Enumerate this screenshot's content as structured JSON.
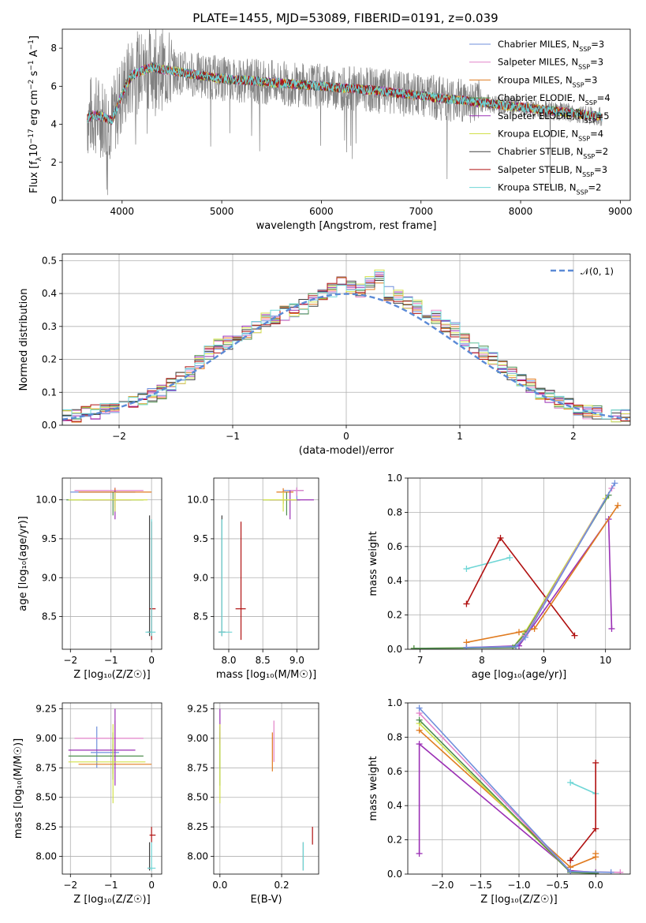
{
  "chart_data": [
    {
      "type": "line",
      "title": "PLATE=1455, MJD=53089, FIBERID=0191, z=0.039",
      "xlabel": "wavelength [Angstrom, rest frame]",
      "ylabel_parts": [
        "Flux [f",
        "λ",
        "10",
        "−17",
        " erg cm",
        "−2",
        " s",
        "−1",
        " A",
        "−1",
        "]"
      ],
      "xlim": [
        3400,
        9100
      ],
      "ylim": [
        0,
        9
      ],
      "xticks": [
        4000,
        5000,
        6000,
        7000,
        8000,
        9000
      ],
      "yticks": [
        0,
        2,
        4,
        6,
        8
      ],
      "data_range": [
        3650,
        8820
      ],
      "grid": false,
      "legend_position": "top-right",
      "series": [
        {
          "name": "Chabrier MILES",
          "nssp": "3",
          "color": "#6f8fdb"
        },
        {
          "name": "Salpeter MILES",
          "nssp": "3",
          "color": "#e282c8"
        },
        {
          "name": "Kroupa MILES",
          "nssp": "3",
          "color": "#e07b20"
        },
        {
          "name": "Chabrier ELODIE",
          "nssp": "4",
          "color": "#4f8f4f"
        },
        {
          "name": "Salpeter ELODIE",
          "nssp": "5",
          "color": "#9b30b5"
        },
        {
          "name": "Kroupa ELODIE",
          "nssp": "4",
          "color": "#d2e04a"
        },
        {
          "name": "Chabrier STELIB",
          "nssp": "2",
          "color": "#404040"
        },
        {
          "name": "Salpeter STELIB",
          "nssp": "3",
          "color": "#b01010"
        },
        {
          "name": "Kroupa STELIB",
          "nssp": "2",
          "color": "#6fd6d6"
        }
      ],
      "continuum": {
        "x": [
          3650,
          3700,
          3800,
          3900,
          4000,
          4100,
          4300,
          4500,
          5000,
          5500,
          6000,
          6500,
          7000,
          7500,
          8000,
          8500,
          8820
        ],
        "y": [
          4.3,
          4.5,
          4.4,
          4.2,
          5.6,
          6.6,
          7.0,
          6.8,
          6.4,
          6.2,
          6.0,
          5.8,
          5.5,
          5.2,
          4.9,
          4.6,
          4.4
        ]
      }
    },
    {
      "type": "histogram",
      "xlabel": "(data-model)/error",
      "ylabel": "Normed distribution",
      "xlim": [
        -2.5,
        2.5
      ],
      "ylim": [
        0,
        0.52
      ],
      "xticks": [
        -2,
        -1,
        0,
        1,
        2
      ],
      "yticks": [
        0.0,
        0.1,
        0.2,
        0.3,
        0.4,
        0.5
      ],
      "grid": true,
      "legend": "𝒩(0, 1)",
      "legend_position": "top-right",
      "bin_width": 0.1,
      "base": [
        0.03,
        0.03,
        0.04,
        0.04,
        0.05,
        0.06,
        0.06,
        0.07,
        0.08,
        0.09,
        0.1,
        0.12,
        0.14,
        0.16,
        0.19,
        0.22,
        0.24,
        0.25,
        0.26,
        0.28,
        0.3,
        0.32,
        0.33,
        0.34,
        0.35,
        0.36,
        0.38,
        0.39,
        0.41,
        0.43,
        0.42,
        0.41,
        0.43,
        0.45,
        0.4,
        0.39,
        0.37,
        0.36,
        0.34,
        0.33,
        0.3,
        0.29,
        0.26,
        0.24,
        0.22,
        0.2,
        0.18,
        0.16,
        0.14,
        0.12,
        0.1,
        0.09,
        0.07,
        0.06,
        0.05,
        0.04,
        0.04,
        0.03,
        0.03,
        0.03
      ]
    },
    {
      "type": "scatter",
      "xlabel": "Z [log₁₀(Z/Z☉)]",
      "ylabel": "age  [log₁₀(age/yr)]",
      "xlim": [
        -2.2,
        0.25
      ],
      "ylim": [
        8.08,
        10.28
      ],
      "xticks": [
        -2,
        -1,
        0
      ],
      "yticks": [
        8.5,
        9.0,
        9.5,
        10.0
      ],
      "grid": true
    },
    {
      "type": "scatter",
      "xlabel": "mass [log₁₀(M/M☉)]",
      "xlim": [
        7.78,
        9.32
      ],
      "ylim": [
        8.08,
        10.28
      ],
      "xticks": [
        8.0,
        8.5,
        9.0
      ],
      "yticks": [
        8.5,
        9.0,
        9.5,
        10.0
      ],
      "grid": true
    },
    {
      "type": "line",
      "xlabel": "age  [log₁₀(age/yr)]",
      "ylabel": "mass weight",
      "xlim": [
        6.8,
        10.4
      ],
      "ylim": [
        0,
        1
      ],
      "xticks": [
        7,
        8,
        9,
        10
      ],
      "yticks": [
        0.0,
        0.2,
        0.4,
        0.6,
        0.8,
        1.0
      ],
      "grid": true,
      "series": [
        {
          "color": "#6fd6d6",
          "x": [
            7.75,
            8.45
          ],
          "y": [
            0.47,
            0.535
          ]
        },
        {
          "color": "#b01010",
          "x": [
            7.75,
            8.3,
            9.5
          ],
          "y": [
            0.265,
            0.65,
            0.08
          ]
        },
        {
          "color": "#9b30b5",
          "x": [
            7.75,
            8.6,
            10.05,
            10.1
          ],
          "y": [
            0.01,
            0.02,
            0.76,
            0.12
          ]
        },
        {
          "color": "#e07b20",
          "x": [
            7.75,
            8.6,
            8.85,
            10.2
          ],
          "y": [
            0.04,
            0.1,
            0.12,
            0.84
          ]
        },
        {
          "color": "#d2e04a",
          "x": [
            6.9,
            8.5,
            8.7,
            10.0
          ],
          "y": [
            0.005,
            0.01,
            0.1,
            0.88
          ]
        },
        {
          "color": "#4f8f4f",
          "x": [
            6.9,
            8.5,
            8.7,
            10.05
          ],
          "y": [
            0.005,
            0.01,
            0.09,
            0.9
          ]
        },
        {
          "color": "#e282c8",
          "x": [
            7.75,
            8.55,
            8.7,
            10.1
          ],
          "y": [
            0.01,
            0.015,
            0.08,
            0.94
          ]
        },
        {
          "color": "#6f8fdb",
          "x": [
            7.75,
            8.55,
            8.7,
            10.15
          ],
          "y": [
            0.01,
            0.015,
            0.07,
            0.97
          ]
        }
      ]
    },
    {
      "type": "scatter",
      "xlabel": "Z [log₁₀(Z/Z☉)]",
      "ylabel": "mass [log₁₀(M/M☉)]",
      "xlim": [
        -2.2,
        0.25
      ],
      "ylim": [
        7.85,
        9.3
      ],
      "xticks": [
        -2,
        -1,
        0
      ],
      "yticks": [
        8.0,
        8.25,
        8.5,
        8.75,
        9.0,
        9.25
      ],
      "grid": true
    },
    {
      "type": "scatter",
      "xlabel": "E(B-V)",
      "xlim": [
        -0.02,
        0.32
      ],
      "ylim": [
        7.85,
        9.3
      ],
      "xticks": [
        0.0,
        0.2
      ],
      "yticks": [
        8.0,
        8.25,
        8.5,
        8.75,
        9.0,
        9.25
      ],
      "grid": true
    },
    {
      "type": "line",
      "xlabel": "Z [log₁₀(Z/Z☉)]",
      "ylabel": "mass weight",
      "xlim": [
        -2.45,
        0.45
      ],
      "ylim": [
        0,
        1
      ],
      "xticks": [
        -2.0,
        -1.5,
        -1.0,
        -0.5,
        0.0
      ],
      "yticks": [
        0.0,
        0.2,
        0.4,
        0.6,
        0.8,
        1.0
      ],
      "grid": true,
      "series": [
        {
          "color": "#6fd6d6",
          "x": [
            -0.33,
            0.0
          ],
          "y": [
            0.535,
            0.47
          ]
        },
        {
          "color": "#b01010",
          "x": [
            -0.33,
            0.0,
            0.0
          ],
          "y": [
            0.08,
            0.265,
            0.65
          ]
        },
        {
          "color": "#9b30b5",
          "x": [
            -2.3,
            -2.3,
            -0.33,
            0.0
          ],
          "y": [
            0.12,
            0.76,
            0.02,
            0.01
          ]
        },
        {
          "color": "#e07b20",
          "x": [
            -2.3,
            -0.33,
            0.0,
            0.0
          ],
          "y": [
            0.84,
            0.04,
            0.1,
            0.12
          ]
        },
        {
          "color": "#d2e04a",
          "x": [
            -2.3,
            -0.33,
            0.0
          ],
          "y": [
            0.88,
            0.01,
            0.005
          ]
        },
        {
          "color": "#4f8f4f",
          "x": [
            -2.3,
            -0.33,
            0.0
          ],
          "y": [
            0.9,
            0.01,
            0.005
          ]
        },
        {
          "color": "#e282c8",
          "x": [
            -2.3,
            -0.33,
            0.32
          ],
          "y": [
            0.94,
            0.015,
            0.01
          ]
        },
        {
          "color": "#6f8fdb",
          "x": [
            -2.3,
            -0.33,
            0.2
          ],
          "y": [
            0.97,
            0.015,
            0.01
          ]
        }
      ]
    }
  ],
  "errorbars": {
    "age_vs_Z": [
      {
        "color": "#6f8fdb",
        "x": -0.9,
        "y": 10.1,
        "xlo": -2.0,
        "xhi": -0.4,
        "ylo": 10.0,
        "yhi": 10.15
      },
      {
        "color": "#e282c8",
        "x": -0.9,
        "y": 10.12,
        "xlo": -1.9,
        "xhi": -0.2,
        "ylo": 10.05,
        "yhi": 10.16
      },
      {
        "color": "#e07b20",
        "x": -0.9,
        "y": 10.1,
        "xlo": -1.8,
        "xhi": 0.0,
        "ylo": 9.9,
        "yhi": 10.15
      },
      {
        "color": "#4f8f4f",
        "x": -0.95,
        "y": 10.0,
        "xlo": -2.1,
        "xhi": -0.2,
        "ylo": 9.8,
        "yhi": 10.1
      },
      {
        "color": "#9b30b5",
        "x": -0.9,
        "y": 10.0,
        "xlo": -1.7,
        "xhi": -0.5,
        "ylo": 9.75,
        "yhi": 10.12
      },
      {
        "color": "#d2e04a",
        "x": -0.9,
        "y": 10.0,
        "xlo": -2.05,
        "xhi": -0.1,
        "ylo": 9.85,
        "yhi": 10.1
      },
      {
        "color": "#404040",
        "x": -0.05,
        "y": 8.3,
        "xlo": -0.1,
        "xhi": 0.0,
        "ylo": 8.25,
        "yhi": 9.8
      },
      {
        "color": "#b01010",
        "x": 0.0,
        "y": 8.6,
        "xlo": -0.05,
        "xhi": 0.1,
        "ylo": 8.2,
        "yhi": 9.72
      },
      {
        "color": "#6fd6d6",
        "x": 0.0,
        "y": 8.3,
        "xlo": -0.15,
        "xhi": 0.1,
        "ylo": 8.25,
        "yhi": 9.75
      }
    ],
    "age_vs_mass": [
      {
        "color": "#6f8fdb",
        "x": 9.0,
        "y": 10.12,
        "xlo": 8.8,
        "xhi": 9.1,
        "ylo": 10.0,
        "yhi": 10.16
      },
      {
        "color": "#e282c8",
        "x": 9.0,
        "y": 10.12,
        "xlo": 8.9,
        "xhi": 9.1,
        "ylo": 10.05,
        "yhi": 10.16
      },
      {
        "color": "#e07b20",
        "x": 8.8,
        "y": 10.1,
        "xlo": 8.7,
        "xhi": 8.95,
        "ylo": 9.95,
        "yhi": 10.15
      },
      {
        "color": "#4f8f4f",
        "x": 8.85,
        "y": 10.0,
        "xlo": 8.5,
        "xhi": 9.05,
        "ylo": 9.8,
        "yhi": 10.1
      },
      {
        "color": "#9b30b5",
        "x": 8.9,
        "y": 10.0,
        "xlo": 8.6,
        "xhi": 9.25,
        "ylo": 9.75,
        "yhi": 10.12
      },
      {
        "color": "#d2e04a",
        "x": 8.8,
        "y": 10.0,
        "xlo": 8.5,
        "xhi": 9.0,
        "ylo": 9.85,
        "yhi": 10.1
      },
      {
        "color": "#404040",
        "x": 7.9,
        "y": 8.3,
        "xlo": 7.85,
        "xhi": 7.95,
        "ylo": 8.25,
        "yhi": 9.8
      },
      {
        "color": "#b01010",
        "x": 8.18,
        "y": 8.6,
        "xlo": 8.1,
        "xhi": 8.25,
        "ylo": 8.2,
        "yhi": 9.72
      },
      {
        "color": "#6fd6d6",
        "x": 7.9,
        "y": 8.3,
        "xlo": 7.85,
        "xhi": 8.05,
        "ylo": 8.25,
        "yhi": 9.75
      }
    ],
    "mass_vs_Z": [
      {
        "color": "#6f8fdb",
        "x": -1.35,
        "y": 8.88,
        "xlo": -1.5,
        "xhi": -0.8,
        "ylo": 8.75,
        "yhi": 9.1
      },
      {
        "color": "#e282c8",
        "x": -0.9,
        "y": 9.0,
        "xlo": -1.9,
        "xhi": -0.2,
        "ylo": 8.8,
        "yhi": 9.15
      },
      {
        "color": "#e07b20",
        "x": -0.95,
        "y": 8.78,
        "xlo": -1.8,
        "xhi": 0.0,
        "ylo": 8.7,
        "yhi": 8.95
      },
      {
        "color": "#4f8f4f",
        "x": -0.95,
        "y": 8.85,
        "xlo": -2.05,
        "xhi": -0.2,
        "ylo": 8.65,
        "yhi": 9.05
      },
      {
        "color": "#9b30b5",
        "x": -0.9,
        "y": 8.9,
        "xlo": -2.05,
        "xhi": -0.4,
        "ylo": 8.6,
        "yhi": 9.25
      },
      {
        "color": "#d2e04a",
        "x": -0.95,
        "y": 8.8,
        "xlo": -2.05,
        "xhi": -0.15,
        "ylo": 8.45,
        "yhi": 9.12
      },
      {
        "color": "#404040",
        "x": -0.05,
        "y": 7.9,
        "xlo": -0.1,
        "xhi": 0.0,
        "ylo": 7.88,
        "yhi": 8.12
      },
      {
        "color": "#b01010",
        "x": 0.0,
        "y": 8.18,
        "xlo": -0.05,
        "xhi": 0.1,
        "ylo": 8.12,
        "yhi": 8.25
      },
      {
        "color": "#6fd6d6",
        "x": 0.0,
        "y": 7.9,
        "xlo": -0.1,
        "xhi": 0.1,
        "ylo": 7.88,
        "yhi": 8.12
      }
    ],
    "mass_vs_ebv": [
      {
        "color": "#6f8fdb",
        "x": 0.0,
        "y": 8.9,
        "ylo": 8.75,
        "yhi": 9.1
      },
      {
        "color": "#e282c8",
        "x": 0.175,
        "y": 9.0,
        "ylo": 8.8,
        "yhi": 9.15
      },
      {
        "color": "#e07b20",
        "x": 0.17,
        "y": 8.85,
        "ylo": 8.72,
        "yhi": 9.05
      },
      {
        "color": "#4f8f4f",
        "x": 0.0,
        "y": 8.85,
        "ylo": 8.6,
        "yhi": 9.05
      },
      {
        "color": "#9b30b5",
        "x": 0.0,
        "y": 9.1,
        "ylo": 8.95,
        "yhi": 9.25
      },
      {
        "color": "#d2e04a",
        "x": 0.0,
        "y": 8.8,
        "ylo": 8.45,
        "yhi": 9.12
      },
      {
        "color": "#404040",
        "x": 0.27,
        "y": 7.95,
        "ylo": 7.88,
        "yhi": 8.12
      },
      {
        "color": "#b01010",
        "x": 0.3,
        "y": 8.18,
        "ylo": 8.1,
        "yhi": 8.25
      },
      {
        "color": "#6fd6d6",
        "x": 0.27,
        "y": 7.95,
        "ylo": 7.88,
        "yhi": 8.12
      }
    ]
  }
}
